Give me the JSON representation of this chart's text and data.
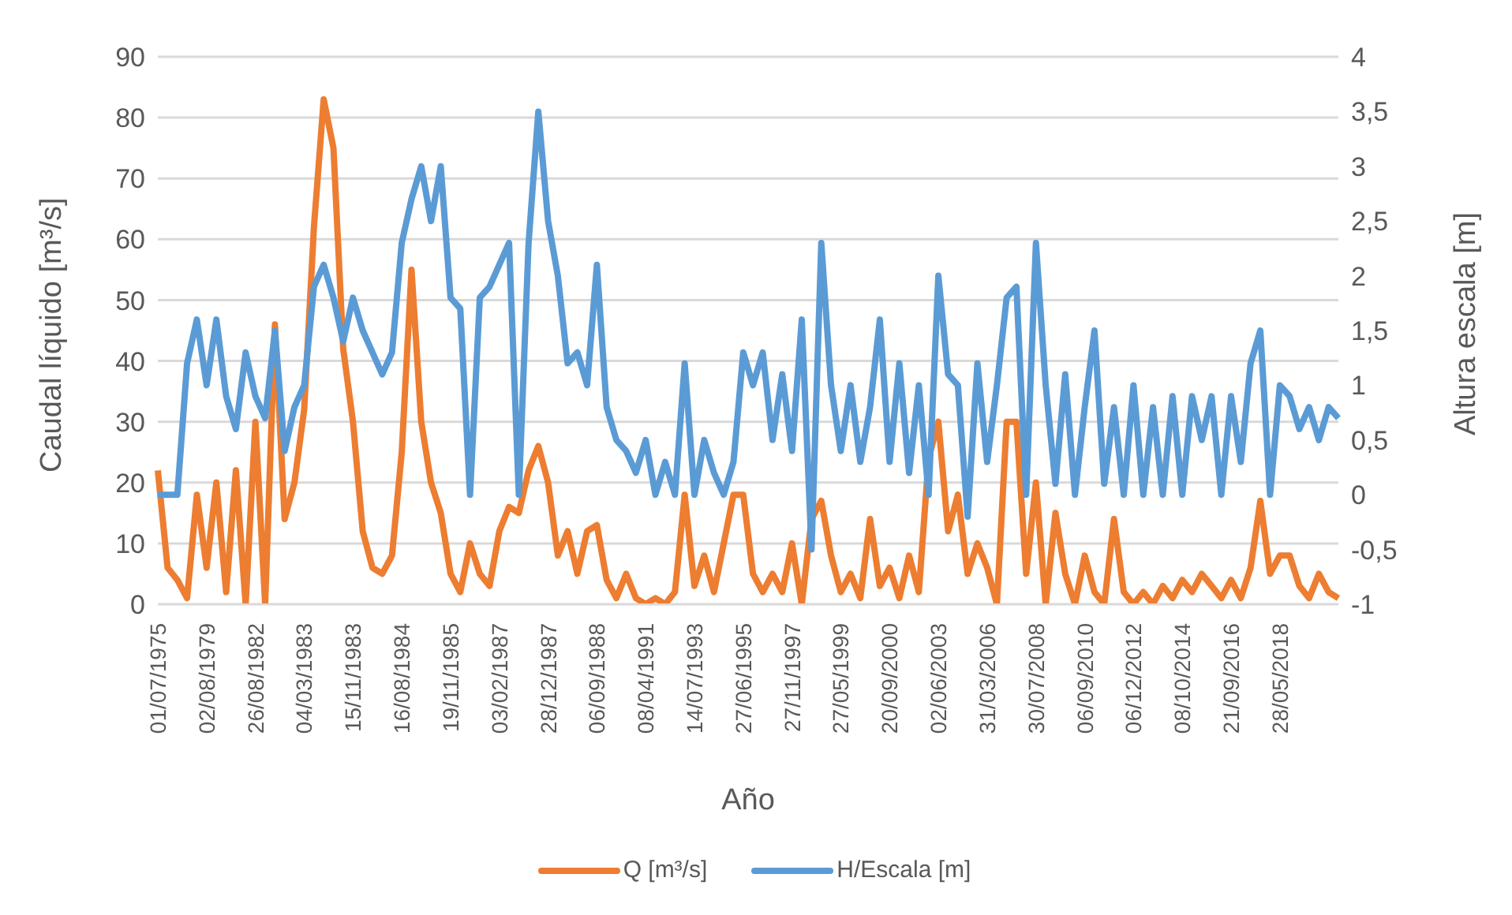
{
  "chart_data": {
    "type": "line",
    "xlabel": "Año",
    "ylabel": "Caudal líquido [m³/s]",
    "y2label": "Altura escala [m]",
    "categories": [
      "01/07/1975",
      null,
      null,
      null,
      null,
      "02/08/1979",
      null,
      null,
      null,
      null,
      "26/08/1982",
      null,
      null,
      null,
      null,
      "04/03/1983",
      null,
      null,
      null,
      null,
      "15/11/1983",
      null,
      null,
      null,
      null,
      "16/08/1984",
      null,
      null,
      null,
      null,
      "19/11/1985",
      null,
      null,
      null,
      null,
      "03/02/1987",
      null,
      null,
      null,
      null,
      "28/12/1987",
      null,
      null,
      null,
      null,
      "06/09/1988",
      null,
      null,
      null,
      null,
      "08/04/1991",
      null,
      null,
      null,
      null,
      "14/07/1993",
      null,
      null,
      null,
      null,
      "27/06/1995",
      null,
      null,
      null,
      null,
      "27/11/1997",
      null,
      null,
      null,
      null,
      "27/05/1999",
      null,
      null,
      null,
      null,
      "20/09/2000",
      null,
      null,
      null,
      null,
      "02/06/2003",
      null,
      null,
      null,
      null,
      "31/03/2006",
      null,
      null,
      null,
      null,
      "30/07/2008",
      null,
      null,
      null,
      null,
      "06/09/2010",
      null,
      null,
      null,
      null,
      "06/12/2012",
      null,
      null,
      null,
      null,
      "08/10/2014",
      null,
      null,
      null,
      null,
      "21/09/2016",
      null,
      null,
      null,
      null,
      "28/05/2018",
      null,
      null,
      null,
      null,
      null,
      null
    ],
    "series": [
      {
        "name": "Q [m³/s]",
        "color": "#ed7d31",
        "values": [
          22,
          6,
          4,
          1,
          18,
          6,
          20,
          2,
          22,
          0,
          30,
          0,
          46,
          14,
          20,
          32,
          62,
          83,
          75,
          42,
          30,
          12,
          6,
          5,
          8,
          25,
          55,
          30,
          20,
          15,
          5,
          2,
          10,
          5,
          3,
          12,
          16,
          15,
          22,
          26,
          20,
          8,
          12,
          5,
          12,
          13,
          4,
          1,
          5,
          1,
          0,
          1,
          0,
          2,
          18,
          3,
          8,
          2,
          10,
          18,
          18,
          5,
          2,
          5,
          2,
          10,
          0,
          14,
          17,
          8,
          2,
          5,
          1,
          14,
          3,
          6,
          1,
          8,
          2,
          24,
          30,
          12,
          18,
          5,
          10,
          6,
          0,
          30,
          30,
          5,
          20,
          0,
          15,
          5,
          0,
          8,
          2,
          0,
          14,
          2,
          0,
          2,
          0,
          3,
          1,
          4,
          2,
          5,
          3,
          1,
          4,
          1,
          6,
          17,
          5,
          8,
          8,
          3,
          1,
          5,
          2,
          1
        ]
      },
      {
        "name": "H/Escala [m]",
        "color": "#5b9bd5",
        "axis": "y2",
        "values": [
          0,
          0,
          0,
          1.2,
          1.6,
          1.0,
          1.6,
          0.9,
          0.6,
          1.3,
          0.9,
          0.7,
          1.5,
          0.4,
          0.8,
          1.0,
          1.9,
          2.1,
          1.8,
          1.4,
          1.8,
          1.5,
          1.3,
          1.1,
          1.3,
          2.3,
          2.7,
          3.0,
          2.5,
          3.0,
          1.8,
          1.7,
          0,
          1.8,
          1.9,
          2.1,
          2.3,
          0,
          2.3,
          3.5,
          2.5,
          2.0,
          1.2,
          1.3,
          1.0,
          2.1,
          0.8,
          0.5,
          0.4,
          0.2,
          0.5,
          0,
          0.3,
          0,
          1.2,
          0,
          0.5,
          0.2,
          0,
          0.3,
          1.3,
          1.0,
          1.3,
          0.5,
          1.1,
          0.4,
          1.6,
          -0.5,
          2.3,
          1.0,
          0.4,
          1.0,
          0.3,
          0.8,
          1.6,
          0.3,
          1.2,
          0.2,
          1.0,
          0,
          2.0,
          1.1,
          1.0,
          -0.2,
          1.2,
          0.3,
          1.0,
          1.8,
          1.9,
          0,
          2.3,
          1.0,
          0.1,
          1.1,
          0,
          0.8,
          1.5,
          0.1,
          0.8,
          0,
          1.0,
          0,
          0.8,
          0,
          0.9,
          0,
          0.9,
          0.5,
          0.9,
          0,
          0.9,
          0.3,
          1.2,
          1.5,
          0,
          1.0,
          0.9,
          0.6,
          0.8,
          0.5,
          0.8,
          0.7
        ]
      }
    ],
    "ylim": [
      0,
      90
    ],
    "yticks": [
      0,
      10,
      20,
      30,
      40,
      50,
      60,
      70,
      80,
      90
    ],
    "y2lim": [
      -1,
      4
    ],
    "y2ticks": [
      -1,
      {
        "value": -0.5,
        "label": "-0,5"
      },
      0,
      {
        "value": 0.5,
        "label": "0,5"
      },
      1,
      {
        "value": 1.5,
        "label": "1,5"
      },
      2,
      {
        "value": 2.5,
        "label": "2,5"
      },
      3,
      {
        "value": 3.5,
        "label": "3,5"
      },
      4
    ],
    "grid": "y",
    "legend": "bottom",
    "marker": "none",
    "line_style": "solid"
  }
}
